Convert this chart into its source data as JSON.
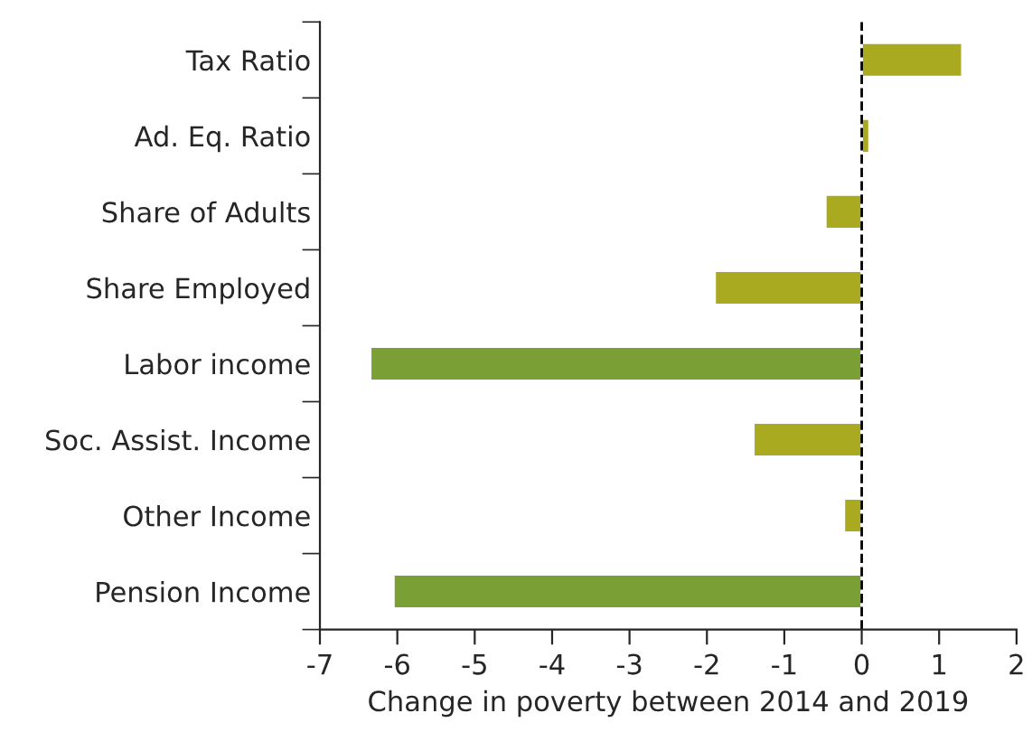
{
  "chart_data": {
    "type": "bar",
    "orientation": "horizontal",
    "categories": [
      "Tax Ratio",
      "Ad. Eq. Ratio",
      "Share of Adults",
      "Share Employed",
      "Labor income",
      "Soc. Assist. Income",
      "Other Income",
      "Pension Income"
    ],
    "values": [
      1.3,
      0.1,
      -0.47,
      -1.9,
      -6.35,
      -1.4,
      -0.23,
      -6.05
    ],
    "colors": [
      "#a9aa1f",
      "#a9aa1f",
      "#a9aa1f",
      "#a9aa1f",
      "#7a9f35",
      "#a9aa1f",
      "#a9aa1f",
      "#7a9f35"
    ],
    "xlim": [
      -7,
      2
    ],
    "xticks": [
      -7,
      -6,
      -5,
      -4,
      -3,
      -2,
      -1,
      0,
      1,
      2
    ],
    "xlabel": "Change in poverty between 2014 and 2019",
    "ref_lines": [
      {
        "axis": "x",
        "value": 0,
        "color": "#000000",
        "line_style": "dashed"
      }
    ],
    "grid": false
  }
}
